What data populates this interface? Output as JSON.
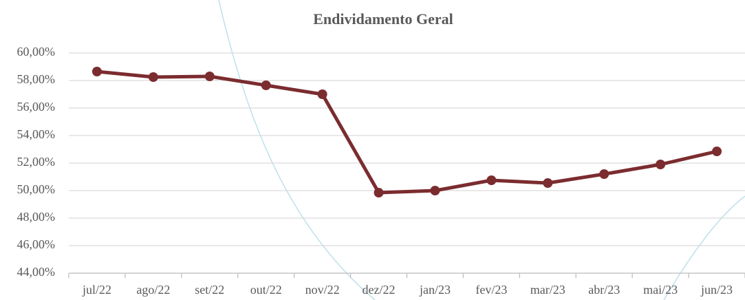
{
  "chart_data": {
    "type": "line",
    "title": "Endividamento Geral",
    "categories": [
      "jul/22",
      "ago/22",
      "set/22",
      "out/22",
      "nov/22",
      "dez/22",
      "jan/23",
      "fev/23",
      "mar/23",
      "abr/23",
      "mai/23",
      "jun/23"
    ],
    "series": [
      {
        "name": "Endividamento Geral",
        "color": "#7b2c2f",
        "values": [
          58.65,
          58.25,
          58.3,
          57.65,
          57.0,
          49.85,
          50.0,
          50.75,
          50.55,
          51.2,
          51.9,
          52.85
        ]
      }
    ],
    "ylim": [
      44,
      60
    ],
    "yticks": [
      {
        "value": 44,
        "label": "44,00%"
      },
      {
        "value": 46,
        "label": "46,00%"
      },
      {
        "value": 48,
        "label": "48,00%"
      },
      {
        "value": 50,
        "label": "50,00%"
      },
      {
        "value": 52,
        "label": "52,00%"
      },
      {
        "value": 54,
        "label": "54,00%"
      },
      {
        "value": 56,
        "label": "56,00%"
      },
      {
        "value": 58,
        "label": "58,00%"
      },
      {
        "value": 60,
        "label": "60,00%"
      }
    ],
    "grid": true
  }
}
